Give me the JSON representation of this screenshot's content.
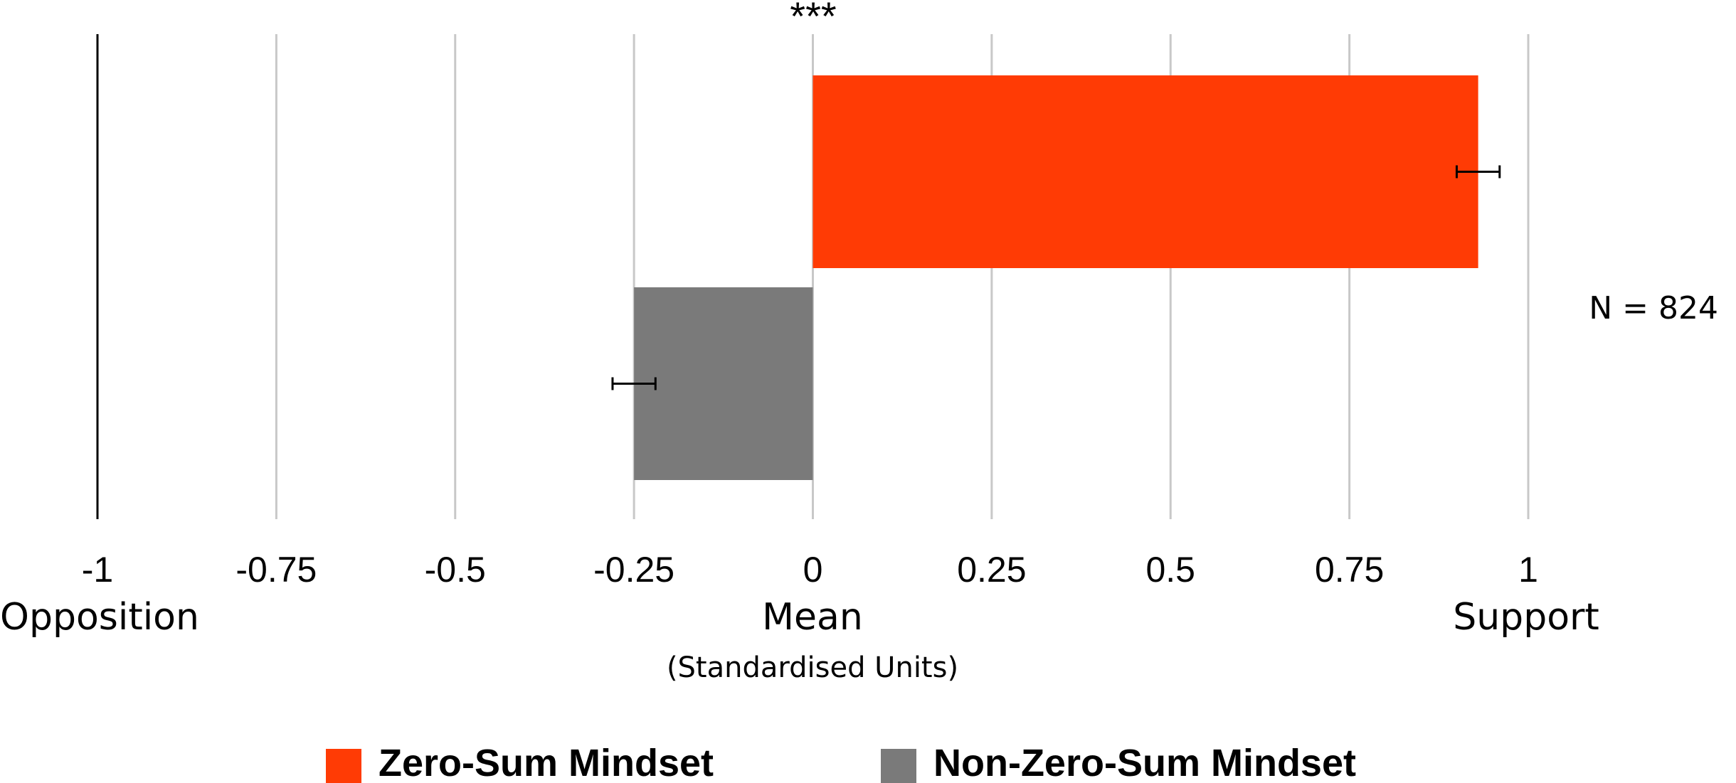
{
  "chart_data": {
    "type": "bar",
    "orientation": "horizontal",
    "series": [
      {
        "name": "Zero-Sum Mindset",
        "value": 0.93,
        "error": 0.03,
        "color": "#ff3b05"
      },
      {
        "name": "Non-Zero-Sum Mindset",
        "value": -0.25,
        "error": 0.03,
        "color": "#7a7a7a"
      }
    ],
    "xlim": [
      -1,
      1
    ],
    "xticks": [
      -1,
      -0.75,
      -0.5,
      -0.25,
      0,
      0.25,
      0.5,
      0.75,
      1
    ],
    "xtick_labels": [
      "-1",
      "-0.75",
      "-0.5",
      "-0.25",
      "0",
      "0.25",
      "0.5",
      "0.75",
      "1"
    ],
    "xlabel": "Mean",
    "xlabel_sub": "(Standardised Units)",
    "xlabel_left": "Opposition",
    "xlabel_right": "Support",
    "annotation_n": "N = 824",
    "significance": "***",
    "grid": true,
    "legend": {
      "position": "bottom"
    }
  }
}
